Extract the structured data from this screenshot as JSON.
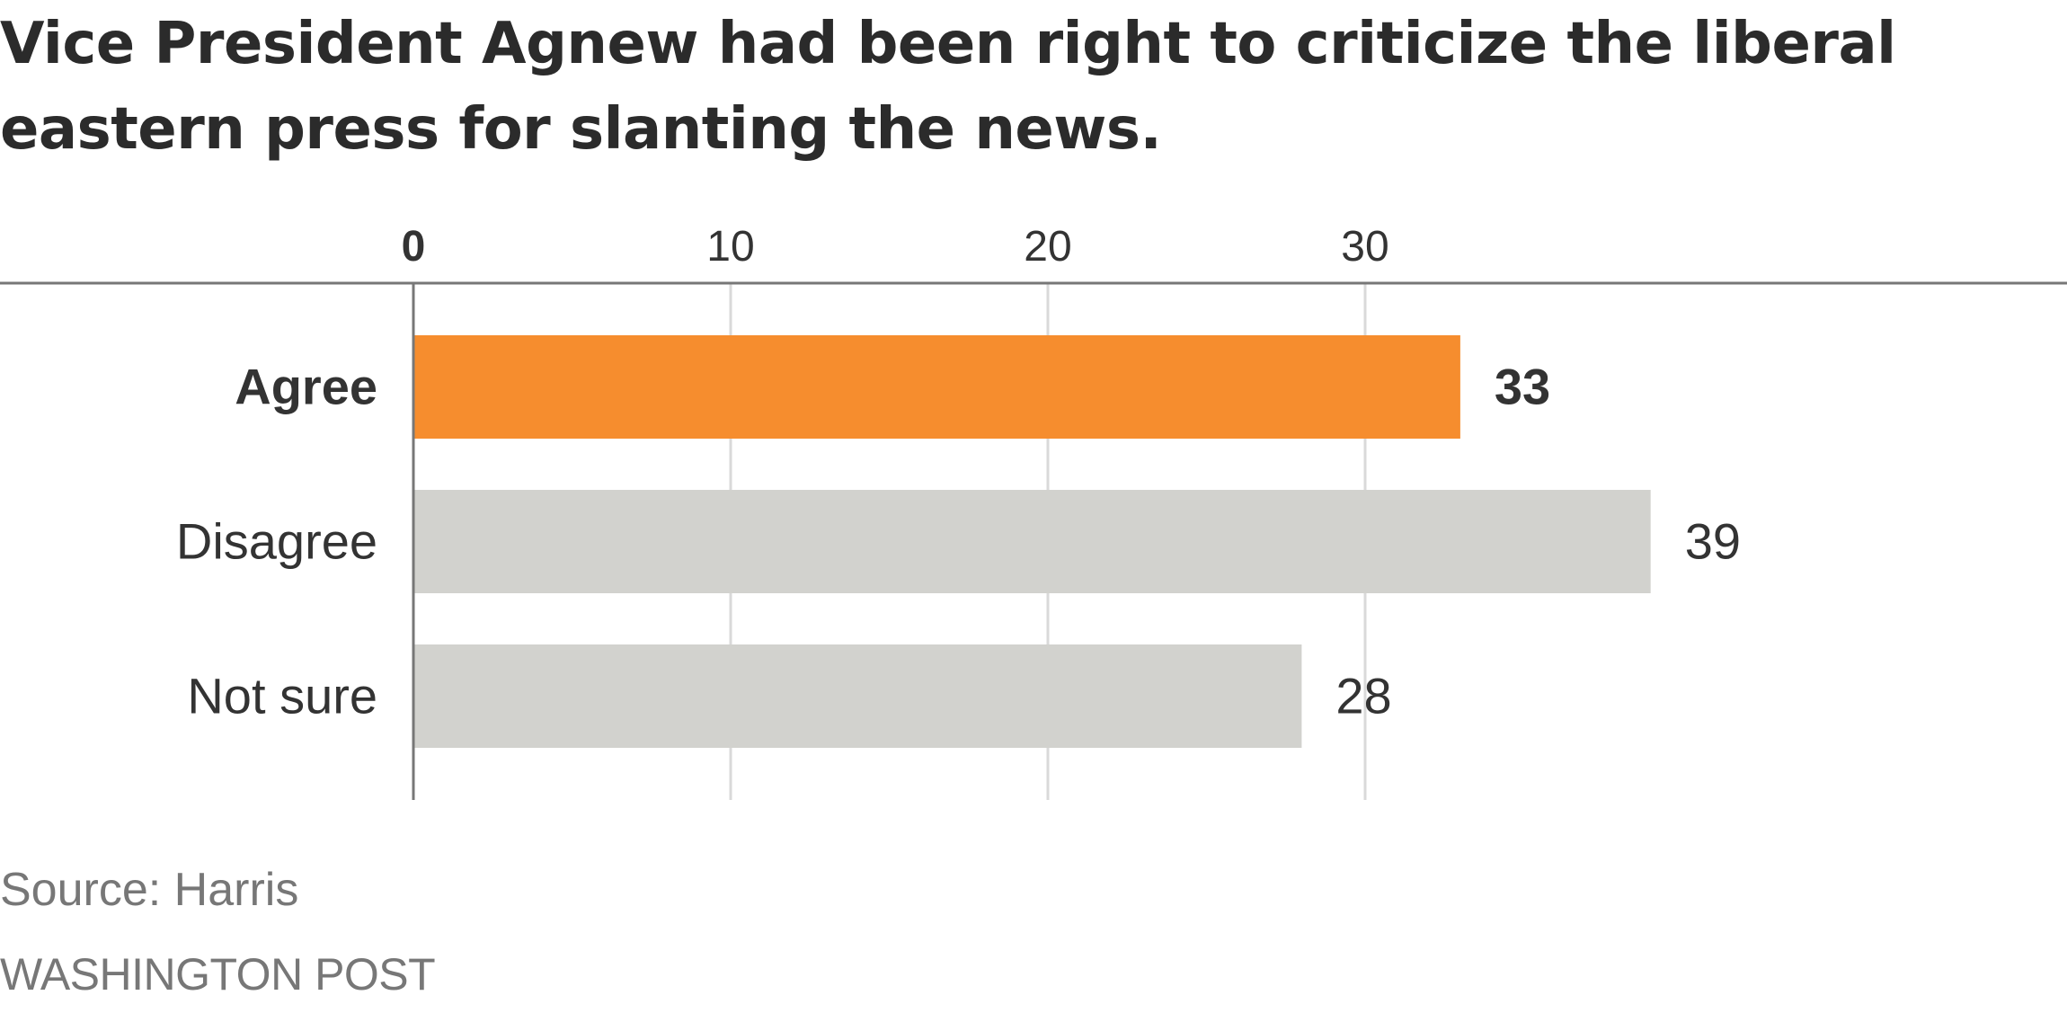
{
  "title": "Vice President Agnew had been right to criticize the liberal eastern press for slanting the news.",
  "source": "Source: Harris",
  "credit": "WASHINGTON POST",
  "colors": {
    "highlight": "#F68D2E",
    "muted": "#D2D2CE",
    "gridline": "#D9D9D9",
    "axis": "#777777",
    "text": "#333333"
  },
  "chart_data": {
    "type": "bar",
    "orientation": "horizontal",
    "title": "Vice President Agnew had been right to criticize the liberal eastern press for slanting the news.",
    "categories": [
      "Agree",
      "Disagree",
      "Not sure"
    ],
    "values": [
      33,
      39,
      28
    ],
    "highlight": [
      "Agree"
    ],
    "xticks": [
      0,
      10,
      20,
      30
    ],
    "xlim": [
      0,
      52
    ],
    "xlabel": "",
    "ylabel": "",
    "grid": true,
    "axis_position": "top"
  }
}
